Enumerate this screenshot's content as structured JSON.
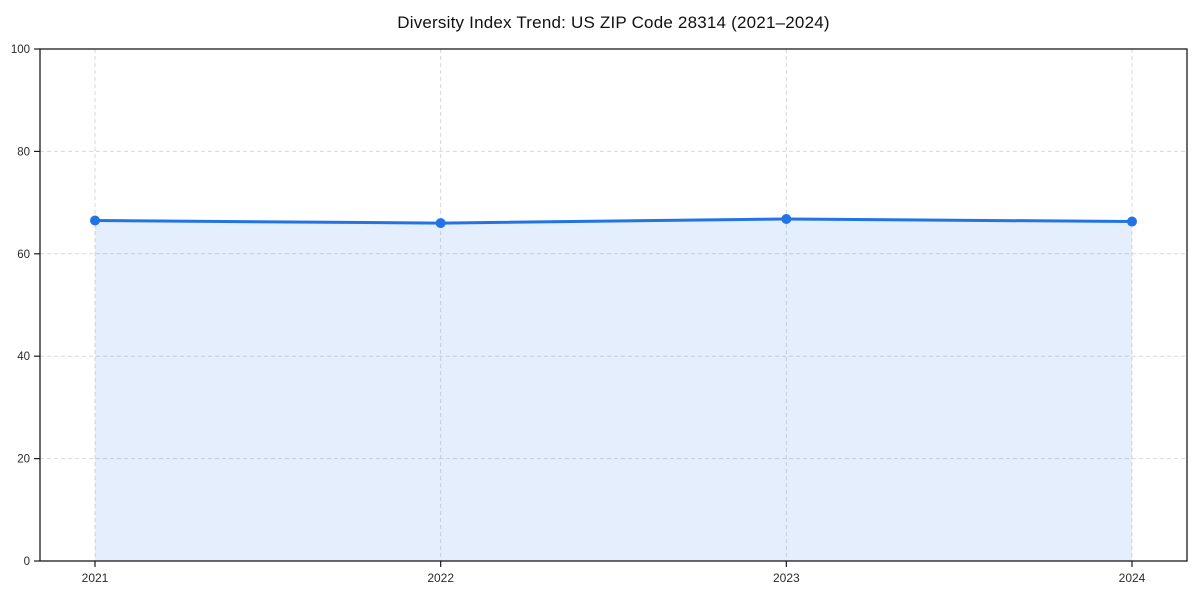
{
  "chart_data": {
    "type": "area",
    "title": "Diversity Index Trend: US ZIP Code 28314 (2021–2024)",
    "x": [
      "2021",
      "2022",
      "2023",
      "2024"
    ],
    "series": [
      {
        "name": "Diversity Index",
        "values": [
          66.5,
          66.0,
          66.8,
          66.3
        ]
      }
    ],
    "xlabel": "",
    "ylabel": "",
    "ylim": [
      0,
      100
    ],
    "yticks": [
      0,
      20,
      40,
      60,
      80,
      100
    ],
    "grid": "dashed, both axes",
    "legend_position": "none",
    "marker": "circle",
    "colors": {
      "line": "#2274e5",
      "marker": "#2274e5",
      "fill": "rgba(34, 116, 229, 0.12)",
      "grid": "#d9d9d9",
      "spine": "#1a1a1a",
      "tick_label": "#2b2b2b",
      "title": "#111111",
      "background": "#ffffff"
    }
  }
}
